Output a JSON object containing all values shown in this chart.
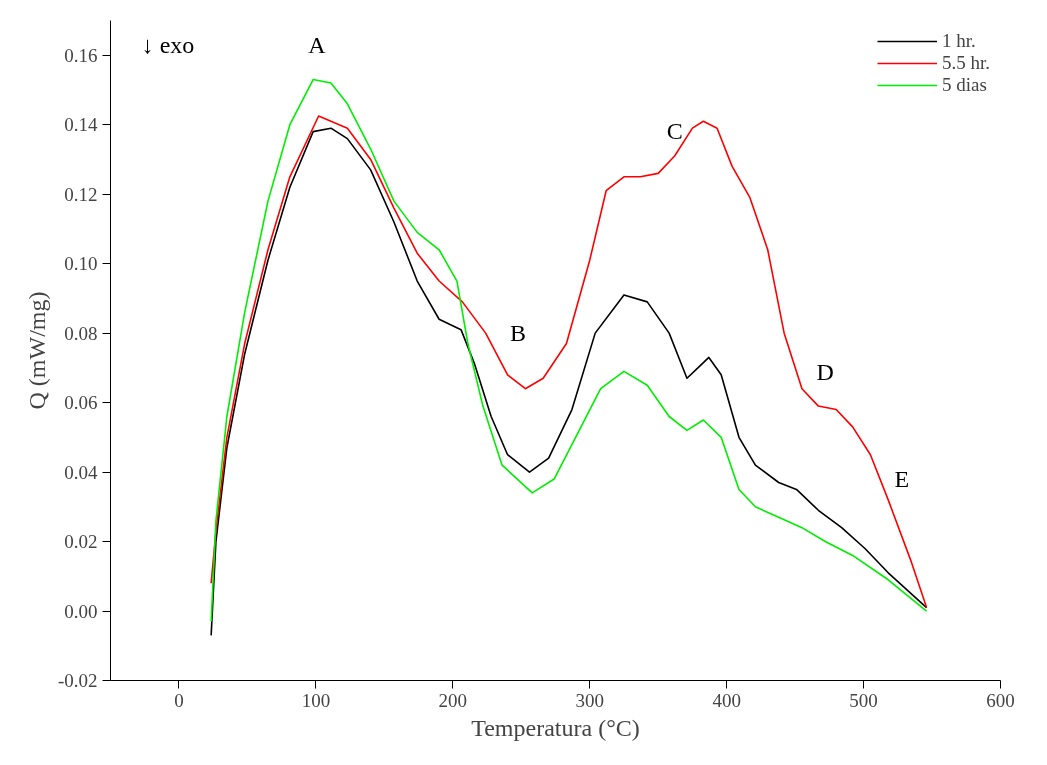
{
  "chart_data": {
    "type": "line",
    "xlabel": "Temperatura (°C)",
    "ylabel": "Q (mW/mg)",
    "xlim": [
      -50,
      600
    ],
    "ylim": [
      -0.02,
      0.17
    ],
    "xticks": [
      0,
      100,
      200,
      300,
      400,
      500,
      600
    ],
    "yticks": [
      {
        "value": -0.02,
        "label": "-0.02"
      },
      {
        "value": 0,
        "label": "0.00"
      },
      {
        "value": 0.02,
        "label": "0.02"
      },
      {
        "value": 0.04,
        "label": "0.04"
      },
      {
        "value": 0.06,
        "label": "0.06"
      },
      {
        "value": 0.08,
        "label": "0.08"
      },
      {
        "value": 0.1,
        "label": "0.10"
      },
      {
        "value": 0.12,
        "label": "0.12"
      },
      {
        "value": 0.14,
        "label": "0.14"
      },
      {
        "value": 0.16,
        "label": "0.16"
      }
    ],
    "grid": false,
    "legend": "top right",
    "line_style": "solid",
    "series": [
      {
        "name": "1 hr.",
        "color": "#000000",
        "x": [
          23.5,
          27,
          35,
          48,
          65,
          81,
          98,
          111,
          123,
          140,
          157,
          174,
          190,
          206,
          216,
          228,
          240,
          256,
          270,
          287,
          304,
          325,
          342,
          358,
          371,
          379,
          387,
          396,
          409,
          421,
          438,
          451,
          467,
          484,
          501,
          518,
          546
        ],
        "values": [
          -0.007,
          0.02,
          0.047,
          0.074,
          0.101,
          0.122,
          0.138,
          0.139,
          0.136,
          0.127,
          0.112,
          0.095,
          0.084,
          0.081,
          0.071,
          0.056,
          0.045,
          0.04,
          0.044,
          0.058,
          0.08,
          0.091,
          0.089,
          0.08,
          0.067,
          0.07,
          0.073,
          0.068,
          0.05,
          0.042,
          0.037,
          0.035,
          0.029,
          0.024,
          0.018,
          0.011,
          0.001
        ]
      },
      {
        "name": "5.5 hr.",
        "color": "#ff0000",
        "x": [
          23.5,
          27,
          35,
          48,
          65,
          81,
          102,
          123,
          140,
          157,
          174,
          190,
          207,
          224,
          240,
          253,
          266,
          283,
          300,
          312,
          325,
          337,
          350,
          362,
          375,
          383,
          393,
          404,
          417,
          430,
          442,
          455,
          467,
          480,
          492,
          505,
          518,
          535,
          546
        ],
        "values": [
          0.008,
          0.023,
          0.05,
          0.077,
          0.104,
          0.125,
          0.1425,
          0.139,
          0.13,
          0.116,
          0.103,
          0.095,
          0.089,
          0.08,
          0.068,
          0.064,
          0.067,
          0.077,
          0.101,
          0.121,
          0.125,
          0.125,
          0.126,
          0.131,
          0.139,
          0.141,
          0.139,
          0.128,
          0.119,
          0.104,
          0.08,
          0.064,
          0.059,
          0.058,
          0.053,
          0.045,
          0.032,
          0.014,
          0.001
        ]
      },
      {
        "name": "5 dias",
        "color": "#00ee00",
        "x": [
          23.5,
          27,
          35,
          48,
          65,
          81,
          98,
          111,
          123,
          140,
          157,
          174,
          190,
          203,
          211,
          222,
          236,
          258,
          274,
          291,
          308,
          325,
          342,
          358,
          371,
          383,
          396,
          409,
          421,
          438,
          455,
          472,
          492,
          518,
          546
        ],
        "values": [
          -0.003,
          0.026,
          0.056,
          0.086,
          0.118,
          0.14,
          0.153,
          0.152,
          0.146,
          0.133,
          0.118,
          0.109,
          0.104,
          0.095,
          0.077,
          0.059,
          0.042,
          0.034,
          0.038,
          0.051,
          0.064,
          0.069,
          0.065,
          0.056,
          0.052,
          0.055,
          0.05,
          0.035,
          0.03,
          0.027,
          0.024,
          0.02,
          0.016,
          0.009,
          0.0
        ]
      }
    ],
    "annotations": [
      "↓ exo",
      "A",
      "B",
      "C",
      "D",
      "E"
    ]
  }
}
